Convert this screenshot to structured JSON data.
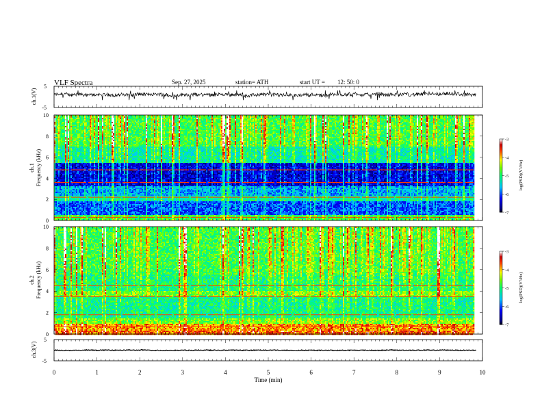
{
  "header": {
    "title": "VLF  Spectra",
    "date": "Sep. 27, 2025",
    "station": "station= ATH",
    "start_label": "start  UT  =",
    "start_time": "12: 50: 0"
  },
  "chart_data": [
    {
      "panel": "ch1-waveform",
      "type": "line",
      "ylabel": "ch.1(V)",
      "ylim": [
        -5,
        5
      ],
      "yticks": [
        "5",
        "-5"
      ],
      "xlim": [
        0,
        10
      ],
      "series": [
        {
          "baseline": 1.0,
          "amplitude_range": [
            -1.5,
            3.0
          ],
          "color": "#000000"
        }
      ]
    },
    {
      "panel": "ch1-spectrogram",
      "type": "heatmap",
      "ylabel_channel": "ch.1",
      "ylabel": "Frequency  (kHz)",
      "ylim": [
        0,
        10
      ],
      "yticks": [
        "0",
        "2",
        "4",
        "6",
        "8",
        "10"
      ],
      "xlim": [
        0,
        10
      ],
      "data_end_min": 9.8,
      "colorbar": {
        "label": "log(PSD)(V²/Hz)",
        "range": [
          -7,
          -3
        ],
        "ticks": [
          "-3",
          "-4",
          "-5",
          "-6",
          "-7"
        ]
      },
      "bands": [
        {
          "fmin": 0.0,
          "fmax": 0.5,
          "level": -4.8
        },
        {
          "fmin": 0.5,
          "fmax": 0.9,
          "level": -6.0
        },
        {
          "fmin": 0.9,
          "fmax": 1.8,
          "level": -6.0
        },
        {
          "fmin": 1.8,
          "fmax": 2.4,
          "level": -5.2
        },
        {
          "fmin": 2.4,
          "fmax": 3.2,
          "level": -5.7
        },
        {
          "fmin": 3.2,
          "fmax": 5.4,
          "level": -6.4
        },
        {
          "fmin": 5.4,
          "fmax": 7.0,
          "level": -5.2
        },
        {
          "fmin": 7.0,
          "fmax": 10.0,
          "level": -4.8
        }
      ],
      "lines_khz": [
        4.8,
        3.6,
        2.2,
        0.3
      ]
    },
    {
      "panel": "ch2-spectrogram",
      "type": "heatmap",
      "ylabel_channel": "ch.2",
      "ylabel": "Frequency  (kHz)",
      "ylim": [
        0,
        10
      ],
      "yticks": [
        "0",
        "2",
        "4",
        "6",
        "8",
        "10"
      ],
      "xlim": [
        0,
        10
      ],
      "data_end_min": 9.8,
      "colorbar": {
        "label": "log(PSD)(V²/Hz)",
        "range": [
          -7,
          -3
        ],
        "ticks": [
          "-3",
          "-4",
          "-5",
          "-6",
          "-7"
        ]
      },
      "bands": [
        {
          "fmin": 0.0,
          "fmax": 0.3,
          "level": -3.7
        },
        {
          "fmin": 0.3,
          "fmax": 1.0,
          "level": -3.9
        },
        {
          "fmin": 1.0,
          "fmax": 1.5,
          "level": -4.6
        },
        {
          "fmin": 1.5,
          "fmax": 3.5,
          "level": -5.1
        },
        {
          "fmin": 3.5,
          "fmax": 4.0,
          "level": -4.6
        },
        {
          "fmin": 4.0,
          "fmax": 5.5,
          "level": -5.0
        },
        {
          "fmin": 5.5,
          "fmax": 10.0,
          "level": -4.8
        }
      ],
      "lines_khz": [
        4.5,
        3.5,
        1.8,
        0.7
      ]
    },
    {
      "panel": "ch3-waveform",
      "type": "line",
      "ylabel": "ch.3(V)",
      "ylim": [
        -5,
        5
      ],
      "yticks": [
        "5",
        "-5"
      ],
      "xlim": [
        0,
        10
      ],
      "series": [
        {
          "baseline": 0.0,
          "amplitude_range": [
            -0.3,
            0.3
          ],
          "color": "#000000"
        }
      ]
    }
  ],
  "xaxis": {
    "label": "Time  (min)",
    "ticks": [
      "0",
      "1",
      "2",
      "3",
      "4",
      "5",
      "6",
      "7",
      "8",
      "9",
      "10"
    ]
  }
}
